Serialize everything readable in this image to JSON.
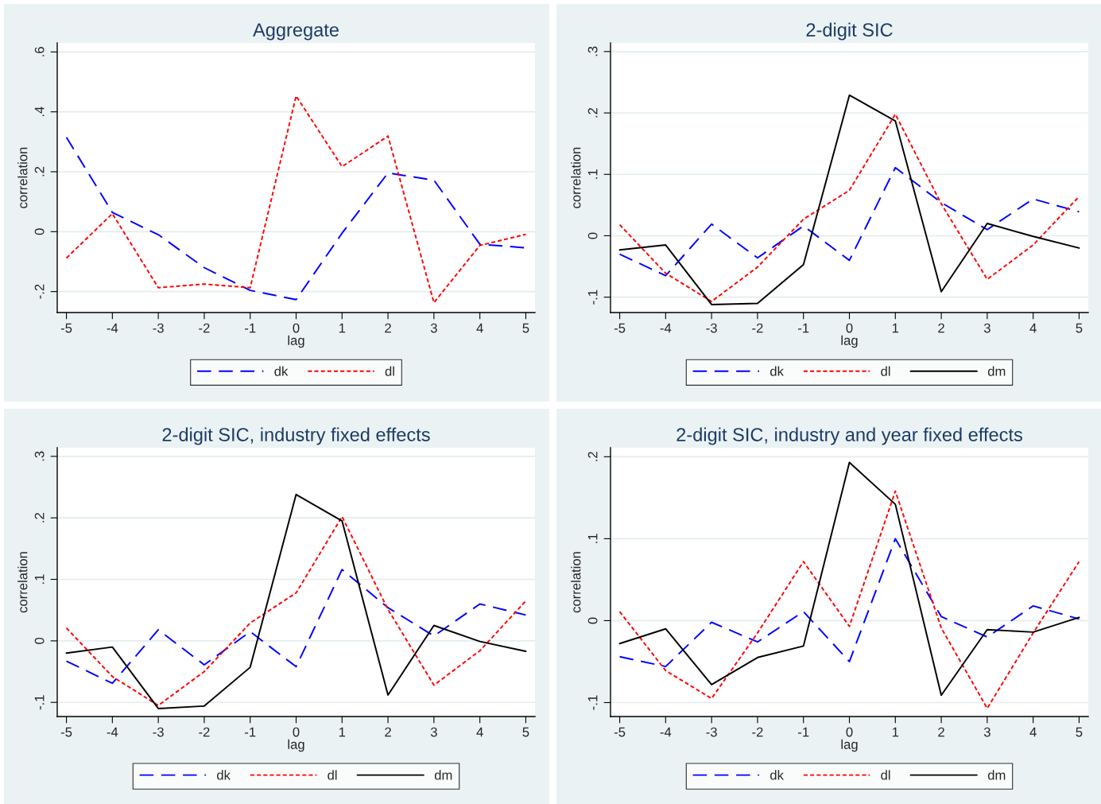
{
  "chart_data": [
    {
      "type": "line",
      "title": "Aggregate",
      "xlabel": "lag",
      "ylabel": "correlation",
      "x": [
        -5,
        -4,
        -3,
        -2,
        -1,
        0,
        1,
        2,
        3,
        4,
        5
      ],
      "xlim": [
        -5.2,
        5.2
      ],
      "xticks": [
        -5,
        -4,
        -3,
        -2,
        -1,
        0,
        1,
        2,
        3,
        4,
        5
      ],
      "ylim": [
        -0.27,
        0.63
      ],
      "yticks": [
        {
          "value": -0.2,
          "label": "-.2"
        },
        0,
        {
          "value": 0.2,
          "label": ".2"
        },
        {
          "value": 0.4,
          "label": ".4"
        },
        {
          "value": 0.6,
          "label": ".6"
        }
      ],
      "grid": "y",
      "legend": "bottom",
      "series": [
        {
          "name": "dk",
          "color": "#0000ff",
          "line_style": "dashed",
          "values": [
            0.315,
            0.064,
            -0.01,
            -0.12,
            -0.196,
            -0.227,
            -0.005,
            0.196,
            0.172,
            -0.042,
            -0.054
          ]
        },
        {
          "name": "dl",
          "color": "#ff0000",
          "line_style": "dotted",
          "values": [
            -0.088,
            0.06,
            -0.187,
            -0.175,
            -0.187,
            0.453,
            0.217,
            0.319,
            -0.237,
            -0.046,
            -0.009
          ]
        }
      ]
    },
    {
      "type": "line",
      "title": "2-digit SIC",
      "xlabel": "lag",
      "ylabel": "correlation",
      "x": [
        -5,
        -4,
        -3,
        -2,
        -1,
        0,
        1,
        2,
        3,
        4,
        5
      ],
      "xlim": [
        -5.2,
        5.2
      ],
      "xticks": [
        -5,
        -4,
        -3,
        -2,
        -1,
        0,
        1,
        2,
        3,
        4,
        5
      ],
      "ylim": [
        -0.125,
        0.314
      ],
      "yticks": [
        {
          "value": -0.1,
          "label": "-.1"
        },
        0,
        {
          "value": 0.1,
          "label": ".1"
        },
        {
          "value": 0.2,
          "label": ".2"
        },
        {
          "value": 0.3,
          "label": ".3"
        }
      ],
      "grid": "y",
      "legend": "bottom",
      "series": [
        {
          "name": "dk",
          "color": "#0000ff",
          "line_style": "dashed",
          "values": [
            -0.03,
            -0.065,
            0.019,
            -0.036,
            0.016,
            -0.04,
            0.111,
            0.054,
            0.01,
            0.06,
            0.039
          ]
        },
        {
          "name": "dl",
          "color": "#ff0000",
          "line_style": "dotted",
          "values": [
            0.018,
            -0.061,
            -0.107,
            -0.051,
            0.027,
            0.074,
            0.198,
            0.052,
            -0.071,
            -0.015,
            0.064
          ]
        },
        {
          "name": "dm",
          "color": "#000000",
          "line_style": "solid",
          "values": [
            -0.023,
            -0.015,
            -0.112,
            -0.11,
            -0.047,
            0.229,
            0.187,
            -0.091,
            0.02,
            -0.001,
            -0.02
          ]
        }
      ]
    },
    {
      "type": "line",
      "title": "2-digit SIC, industry fixed effects",
      "xlabel": "lag",
      "ylabel": "correlation",
      "x": [
        -5,
        -4,
        -3,
        -2,
        -1,
        0,
        1,
        2,
        3,
        4,
        5
      ],
      "xlim": [
        -5.2,
        5.2
      ],
      "xticks": [
        -5,
        -4,
        -3,
        -2,
        -1,
        0,
        1,
        2,
        3,
        4,
        5
      ],
      "ylim": [
        -0.123,
        0.314
      ],
      "yticks": [
        {
          "value": -0.1,
          "label": "-.1"
        },
        0,
        {
          "value": 0.1,
          "label": ".1"
        },
        {
          "value": 0.2,
          "label": ".2"
        },
        {
          "value": 0.3,
          "label": ".3"
        }
      ],
      "grid": "y",
      "legend": "bottom",
      "series": [
        {
          "name": "dk",
          "color": "#0000ff",
          "line_style": "dashed",
          "values": [
            -0.033,
            -0.069,
            0.018,
            -0.039,
            0.015,
            -0.042,
            0.116,
            0.054,
            0.008,
            0.06,
            0.042
          ]
        },
        {
          "name": "dl",
          "color": "#ff0000",
          "line_style": "dotted",
          "values": [
            0.021,
            -0.058,
            -0.105,
            -0.05,
            0.029,
            0.078,
            0.202,
            0.051,
            -0.072,
            -0.016,
            0.065
          ]
        },
        {
          "name": "dm",
          "color": "#000000",
          "line_style": "solid",
          "values": [
            -0.02,
            -0.01,
            -0.11,
            -0.106,
            -0.043,
            0.238,
            0.195,
            -0.088,
            0.025,
            -0.001,
            -0.017
          ]
        }
      ]
    },
    {
      "type": "line",
      "title": "2-digit SIC, industry and year fixed effects",
      "xlabel": "lag",
      "ylabel": "correlation",
      "x": [
        -5,
        -4,
        -3,
        -2,
        -1,
        0,
        1,
        2,
        3,
        4,
        5
      ],
      "xlim": [
        -5.2,
        5.2
      ],
      "xticks": [
        -5,
        -4,
        -3,
        -2,
        -1,
        0,
        1,
        2,
        3,
        4,
        5
      ],
      "ylim": [
        -0.117,
        0.211
      ],
      "yticks": [
        {
          "value": -0.1,
          "label": "-.1"
        },
        0,
        {
          "value": 0.1,
          "label": ".1"
        },
        {
          "value": 0.2,
          "label": ".2"
        }
      ],
      "grid": "y",
      "legend": "bottom",
      "series": [
        {
          "name": "dk",
          "color": "#0000ff",
          "line_style": "dashed",
          "values": [
            -0.044,
            -0.056,
            -0.002,
            -0.026,
            0.011,
            -0.05,
            0.1,
            0.005,
            -0.02,
            0.018,
            0.002
          ]
        },
        {
          "name": "dl",
          "color": "#ff0000",
          "line_style": "dotted",
          "values": [
            0.011,
            -0.061,
            -0.095,
            -0.015,
            0.072,
            -0.007,
            0.158,
            -0.009,
            -0.107,
            -0.015,
            0.072
          ]
        },
        {
          "name": "dm",
          "color": "#000000",
          "line_style": "solid",
          "values": [
            -0.028,
            -0.01,
            -0.078,
            -0.045,
            -0.031,
            0.193,
            0.142,
            -0.091,
            -0.011,
            -0.014,
            0.004
          ]
        }
      ]
    }
  ]
}
